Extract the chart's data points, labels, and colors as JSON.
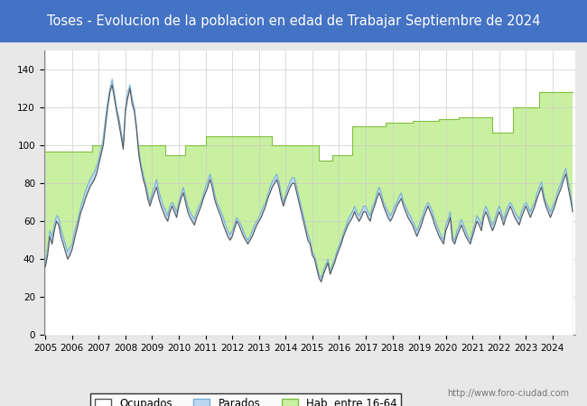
{
  "title": "Toses - Evolucion de la poblacion en edad de Trabajar Septiembre de 2024",
  "title_bg": "#4472c4",
  "title_color": "white",
  "title_fontsize": 10.5,
  "ylim": [
    0,
    150
  ],
  "yticks": [
    0,
    20,
    40,
    60,
    80,
    100,
    120,
    140
  ],
  "xmin": 2004.95,
  "xmax": 2024.85,
  "watermark": "http://www.foro-ciudad.com",
  "legend_labels": [
    "Ocupados",
    "Parados",
    "Hab. entre 16-64"
  ],
  "ocupados_color": "#888888",
  "parados_color": "#aec6e8",
  "hab_color": "#c8f0a0",
  "hab_edge_color": "#80c040",
  "background_color": "#e8e8e8",
  "plot_bg": "white",
  "hab_steps_x": [
    2005.0,
    2006.75,
    2006.75,
    2009.5,
    2009.5,
    2010.25,
    2010.25,
    2011.0,
    2011.0,
    2012.5,
    2012.5,
    2013.5,
    2013.5,
    2015.25,
    2015.25,
    2015.75,
    2015.75,
    2016.5,
    2016.5,
    2017.75,
    2017.75,
    2018.75,
    2018.75,
    2019.75,
    2019.75,
    2020.5,
    2020.5,
    2021.75,
    2021.75,
    2022.5,
    2022.5,
    2022.75,
    2022.75,
    2023.5,
    2023.5,
    2024.75
  ],
  "hab_steps_y": [
    97,
    97,
    100,
    100,
    95,
    95,
    100,
    100,
    105,
    105,
    105,
    105,
    100,
    100,
    92,
    92,
    95,
    95,
    110,
    110,
    112,
    112,
    113,
    113,
    114,
    114,
    115,
    115,
    107,
    107,
    120,
    120,
    120,
    120,
    128,
    128
  ],
  "time_x": [
    2005.0,
    2005.083,
    2005.167,
    2005.25,
    2005.333,
    2005.417,
    2005.5,
    2005.583,
    2005.667,
    2005.75,
    2005.833,
    2005.917,
    2006.0,
    2006.083,
    2006.167,
    2006.25,
    2006.333,
    2006.417,
    2006.5,
    2006.583,
    2006.667,
    2006.75,
    2006.833,
    2006.917,
    2007.0,
    2007.083,
    2007.167,
    2007.25,
    2007.333,
    2007.417,
    2007.5,
    2007.583,
    2007.667,
    2007.75,
    2007.833,
    2007.917,
    2008.0,
    2008.083,
    2008.167,
    2008.25,
    2008.333,
    2008.417,
    2008.5,
    2008.583,
    2008.667,
    2008.75,
    2008.833,
    2008.917,
    2009.0,
    2009.083,
    2009.167,
    2009.25,
    2009.333,
    2009.417,
    2009.5,
    2009.583,
    2009.667,
    2009.75,
    2009.833,
    2009.917,
    2010.0,
    2010.083,
    2010.167,
    2010.25,
    2010.333,
    2010.417,
    2010.5,
    2010.583,
    2010.667,
    2010.75,
    2010.833,
    2010.917,
    2011.0,
    2011.083,
    2011.167,
    2011.25,
    2011.333,
    2011.417,
    2011.5,
    2011.583,
    2011.667,
    2011.75,
    2011.833,
    2011.917,
    2012.0,
    2012.083,
    2012.167,
    2012.25,
    2012.333,
    2012.417,
    2012.5,
    2012.583,
    2012.667,
    2012.75,
    2012.833,
    2012.917,
    2013.0,
    2013.083,
    2013.167,
    2013.25,
    2013.333,
    2013.417,
    2013.5,
    2013.583,
    2013.667,
    2013.75,
    2013.833,
    2013.917,
    2014.0,
    2014.083,
    2014.167,
    2014.25,
    2014.333,
    2014.417,
    2014.5,
    2014.583,
    2014.667,
    2014.75,
    2014.833,
    2014.917,
    2015.0,
    2015.083,
    2015.167,
    2015.25,
    2015.333,
    2015.417,
    2015.5,
    2015.583,
    2015.667,
    2015.75,
    2015.833,
    2015.917,
    2016.0,
    2016.083,
    2016.167,
    2016.25,
    2016.333,
    2016.417,
    2016.5,
    2016.583,
    2016.667,
    2016.75,
    2016.833,
    2016.917,
    2017.0,
    2017.083,
    2017.167,
    2017.25,
    2017.333,
    2017.417,
    2017.5,
    2017.583,
    2017.667,
    2017.75,
    2017.833,
    2017.917,
    2018.0,
    2018.083,
    2018.167,
    2018.25,
    2018.333,
    2018.417,
    2018.5,
    2018.583,
    2018.667,
    2018.75,
    2018.833,
    2018.917,
    2019.0,
    2019.083,
    2019.167,
    2019.25,
    2019.333,
    2019.417,
    2019.5,
    2019.583,
    2019.667,
    2019.75,
    2019.833,
    2019.917,
    2020.0,
    2020.083,
    2020.167,
    2020.25,
    2020.333,
    2020.417,
    2020.5,
    2020.583,
    2020.667,
    2020.75,
    2020.833,
    2020.917,
    2021.0,
    2021.083,
    2021.167,
    2021.25,
    2021.333,
    2021.417,
    2021.5,
    2021.583,
    2021.667,
    2021.75,
    2021.833,
    2021.917,
    2022.0,
    2022.083,
    2022.167,
    2022.25,
    2022.333,
    2022.417,
    2022.5,
    2022.583,
    2022.667,
    2022.75,
    2022.833,
    2022.917,
    2023.0,
    2023.083,
    2023.167,
    2023.25,
    2023.333,
    2023.417,
    2023.5,
    2023.583,
    2023.667,
    2023.75,
    2023.833,
    2023.917,
    2024.0,
    2024.083,
    2024.167,
    2024.25,
    2024.333,
    2024.417,
    2024.5,
    2024.583,
    2024.667,
    2024.75
  ],
  "ocupados_y": [
    36,
    42,
    52,
    48,
    55,
    60,
    58,
    52,
    48,
    44,
    40,
    42,
    45,
    50,
    55,
    60,
    65,
    68,
    72,
    75,
    78,
    80,
    82,
    85,
    90,
    95,
    100,
    110,
    120,
    128,
    132,
    125,
    118,
    112,
    105,
    98,
    118,
    125,
    130,
    122,
    118,
    108,
    95,
    88,
    82,
    78,
    72,
    68,
    72,
    75,
    78,
    72,
    68,
    65,
    62,
    60,
    65,
    68,
    65,
    62,
    68,
    72,
    75,
    70,
    65,
    62,
    60,
    58,
    62,
    65,
    68,
    72,
    75,
    78,
    82,
    78,
    72,
    68,
    65,
    62,
    58,
    55,
    52,
    50,
    52,
    56,
    60,
    58,
    55,
    52,
    50,
    48,
    50,
    52,
    55,
    58,
    60,
    62,
    65,
    68,
    72,
    75,
    78,
    80,
    82,
    78,
    72,
    68,
    72,
    75,
    78,
    80,
    80,
    75,
    70,
    65,
    60,
    55,
    50,
    48,
    42,
    40,
    35,
    30,
    28,
    32,
    35,
    38,
    32,
    35,
    38,
    42,
    45,
    48,
    52,
    55,
    58,
    60,
    62,
    65,
    62,
    60,
    62,
    65,
    65,
    62,
    60,
    65,
    68,
    72,
    75,
    72,
    68,
    65,
    62,
    60,
    62,
    65,
    68,
    70,
    72,
    68,
    65,
    62,
    60,
    58,
    55,
    52,
    55,
    58,
    62,
    65,
    68,
    65,
    62,
    58,
    55,
    52,
    50,
    48,
    55,
    58,
    62,
    50,
    48,
    52,
    55,
    58,
    55,
    52,
    50,
    48,
    52,
    56,
    60,
    58,
    55,
    62,
    65,
    62,
    58,
    55,
    58,
    62,
    65,
    62,
    58,
    62,
    65,
    68,
    65,
    62,
    60,
    58,
    62,
    65,
    68,
    65,
    62,
    65,
    68,
    72,
    75,
    78,
    72,
    68,
    65,
    62,
    65,
    68,
    72,
    75,
    78,
    82,
    85,
    78,
    72,
    65
  ],
  "parados_y": [
    38,
    45,
    55,
    52,
    58,
    63,
    62,
    56,
    52,
    48,
    44,
    46,
    48,
    54,
    58,
    63,
    68,
    72,
    76,
    79,
    82,
    84,
    86,
    89,
    93,
    98,
    104,
    114,
    123,
    130,
    135,
    128,
    120,
    115,
    108,
    100,
    120,
    128,
    132,
    125,
    120,
    110,
    98,
    90,
    85,
    80,
    75,
    70,
    75,
    78,
    82,
    76,
    72,
    68,
    66,
    63,
    68,
    70,
    68,
    65,
    70,
    74,
    78,
    73,
    68,
    65,
    63,
    61,
    65,
    68,
    70,
    74,
    78,
    81,
    85,
    81,
    75,
    70,
    68,
    65,
    62,
    58,
    55,
    53,
    55,
    58,
    62,
    60,
    58,
    55,
    52,
    50,
    52,
    55,
    58,
    60,
    62,
    65,
    68,
    70,
    74,
    78,
    81,
    83,
    85,
    81,
    75,
    70,
    74,
    78,
    81,
    83,
    83,
    78,
    73,
    68,
    63,
    58,
    53,
    50,
    44,
    42,
    37,
    32,
    30,
    34,
    37,
    40,
    34,
    37,
    40,
    44,
    47,
    50,
    54,
    57,
    61,
    63,
    65,
    68,
    65,
    63,
    65,
    68,
    68,
    65,
    63,
    68,
    70,
    75,
    78,
    75,
    70,
    68,
    65,
    63,
    65,
    68,
    70,
    73,
    75,
    70,
    68,
    65,
    63,
    60,
    58,
    55,
    58,
    61,
    65,
    68,
    70,
    68,
    65,
    61,
    58,
    55,
    52,
    50,
    58,
    61,
    65,
    52,
    50,
    55,
    58,
    61,
    58,
    55,
    52,
    50,
    55,
    58,
    63,
    61,
    58,
    65,
    68,
    65,
    61,
    58,
    61,
    65,
    68,
    65,
    61,
    65,
    68,
    70,
    68,
    65,
    63,
    61,
    65,
    68,
    70,
    68,
    65,
    68,
    70,
    75,
    78,
    81,
    75,
    70,
    68,
    65,
    68,
    70,
    75,
    78,
    81,
    85,
    88,
    81,
    75,
    68
  ]
}
